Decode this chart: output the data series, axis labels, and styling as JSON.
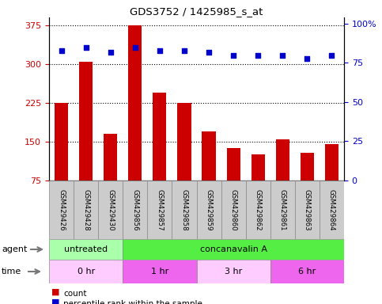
{
  "title": "GDS3752 / 1425985_s_at",
  "samples": [
    "GSM429426",
    "GSM429428",
    "GSM429430",
    "GSM429856",
    "GSM429857",
    "GSM429858",
    "GSM429859",
    "GSM429860",
    "GSM429862",
    "GSM429861",
    "GSM429863",
    "GSM429864"
  ],
  "bar_values": [
    225,
    305,
    165,
    375,
    245,
    225,
    170,
    138,
    125,
    155,
    128,
    145
  ],
  "percentile_values": [
    83,
    85,
    82,
    85,
    83,
    83,
    82,
    80,
    80,
    80,
    78,
    80
  ],
  "bar_color": "#cc0000",
  "dot_color": "#0000cc",
  "ylim_left": [
    75,
    390
  ],
  "ylim_right": [
    0,
    104
  ],
  "yticks_left": [
    75,
    150,
    225,
    300,
    375
  ],
  "yticks_right": [
    0,
    25,
    50,
    75,
    100
  ],
  "agent_groups": [
    {
      "label": "untreated",
      "start": 0,
      "end": 3,
      "color": "#aaffaa"
    },
    {
      "label": "concanavalin A",
      "start": 3,
      "end": 12,
      "color": "#55ee44"
    }
  ],
  "time_groups": [
    {
      "label": "0 hr",
      "start": 0,
      "end": 3,
      "color": "#ffccff"
    },
    {
      "label": "1 hr",
      "start": 3,
      "end": 6,
      "color": "#ee66ee"
    },
    {
      "label": "3 hr",
      "start": 6,
      "end": 9,
      "color": "#ffccff"
    },
    {
      "label": "6 hr",
      "start": 9,
      "end": 12,
      "color": "#ee66ee"
    }
  ],
  "legend_count_color": "#cc0000",
  "legend_dot_color": "#0000cc",
  "bg_color": "#ffffff",
  "left_tick_color": "#cc0000",
  "right_tick_color": "#0000cc",
  "bar_bottom": 75,
  "grid_color": "black",
  "grid_linestyle": "dotted"
}
